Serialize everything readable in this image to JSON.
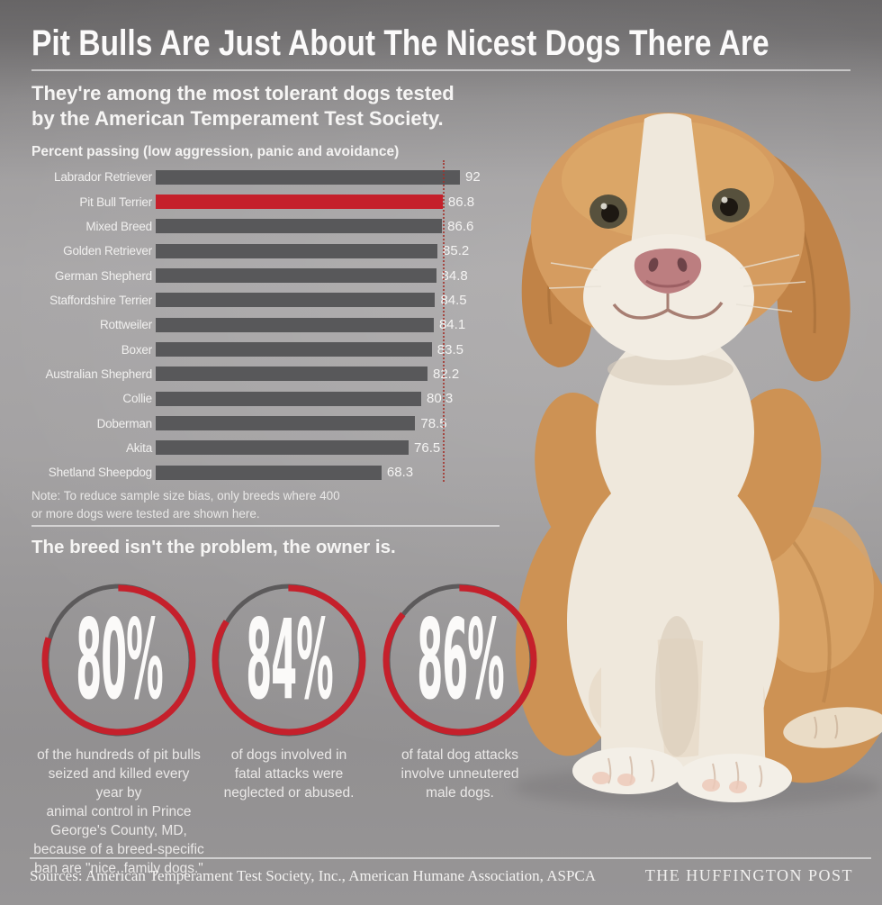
{
  "header": {
    "title": "Pit Bulls Are Just About The Nicest Dogs There Are"
  },
  "intro": {
    "text": "They're among the most tolerant dogs tested\nby the American Temperament Test Society."
  },
  "chart_data": {
    "type": "bar",
    "orientation": "horizontal",
    "title": "Percent passing (low aggression, panic and avoidance)",
    "categories": [
      "Labrador Retriever",
      "Pit Bull Terrier",
      "Mixed Breed",
      "Golden Retriever",
      "German Shepherd",
      "Staffordshire Terrier",
      "Rottweiler",
      "Boxer",
      "Australian Shepherd",
      "Collie",
      "Doberman",
      "Akita",
      "Shetland Sheepdog"
    ],
    "values": [
      92,
      86.8,
      86.6,
      85.2,
      84.8,
      84.5,
      84.1,
      83.5,
      82.2,
      80.3,
      78.5,
      76.5,
      68.3
    ],
    "highlight_index": 1,
    "highlight_category": "Pit Bull Terrier",
    "reference_line_value": 86.8,
    "xlim": [
      0,
      92
    ],
    "grid": false,
    "legend": false,
    "note": "Note: To reduce sample size bias, only breeds where 400\nor more dogs were tested are shown here."
  },
  "section2": {
    "heading": "The breed isn't the problem, the owner is.",
    "stats": [
      {
        "value": "80%",
        "pct": 80,
        "dash": "80 20",
        "caption": "of the hundreds of pit bulls\nseized and killed every year by\nanimal control in Prince\nGeorge's County, MD,\nbecause of a breed-specific\nban are \"nice, family dogs.\""
      },
      {
        "value": "84%",
        "pct": 84,
        "dash": "84 16",
        "caption": "of dogs involved in\nfatal attacks were\nneglected or abused."
      },
      {
        "value": "86%",
        "pct": 86,
        "dash": "86 14",
        "caption": "of fatal dog attacks\ninvolve unneutered\nmale dogs."
      }
    ]
  },
  "footer": {
    "sources": "Sources: American Temperament Test Society, Inc., American Humane Association, ASPCA",
    "brand": "THE HUFFINGTON POST"
  },
  "photo": {
    "alt": "Tan and white pit bull puppy sitting against a gray backdrop"
  },
  "colors": {
    "accent_red": "#c5202b",
    "bar_gray": "#58585a",
    "ring_gray": "#5c5a5b",
    "background_gray": "#a8a6a7",
    "text_white": "#f4f3f2"
  }
}
